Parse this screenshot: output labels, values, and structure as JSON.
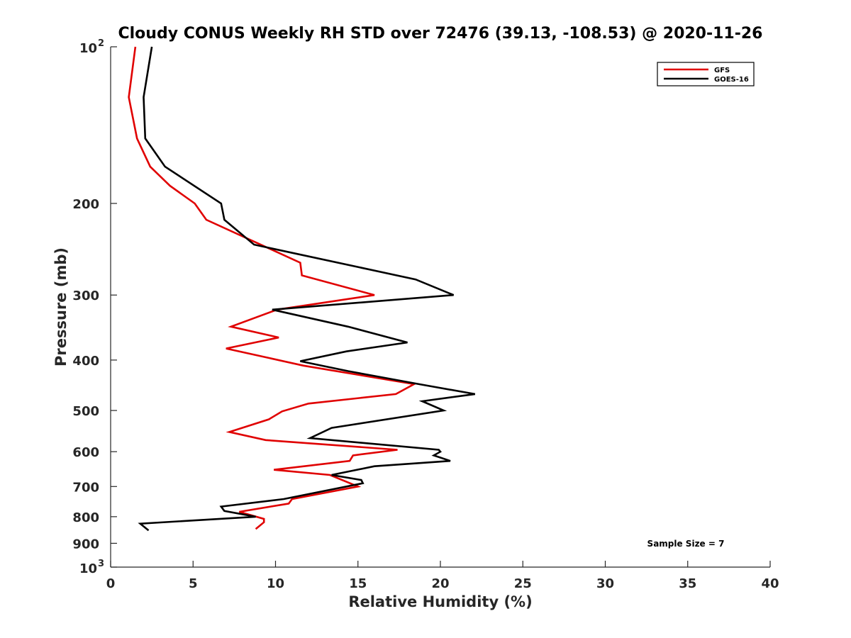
{
  "chart_data": {
    "type": "line",
    "title": "Cloudy CONUS Weekly RH STD over 72476 (39.13, -108.53) @ 2020-11-26",
    "xlabel": "Relative Humidity (%)",
    "ylabel": "Pressure (mb)",
    "xlim": [
      0,
      40
    ],
    "ylim": [
      100,
      1000
    ],
    "y_scale": "log",
    "y_reversed": true,
    "x_ticks": [
      "0",
      "5",
      "10",
      "15",
      "20",
      "25",
      "30",
      "35",
      "40"
    ],
    "y_ticks": [
      {
        "value": 100,
        "label": "10",
        "sup": "2"
      },
      {
        "value": 200,
        "label": "200",
        "sup": ""
      },
      {
        "value": 300,
        "label": "300",
        "sup": ""
      },
      {
        "value": 400,
        "label": "400",
        "sup": ""
      },
      {
        "value": 500,
        "label": "500",
        "sup": ""
      },
      {
        "value": 600,
        "label": "600",
        "sup": ""
      },
      {
        "value": 700,
        "label": "700",
        "sup": ""
      },
      {
        "value": 800,
        "label": "800",
        "sup": ""
      },
      {
        "value": 900,
        "label": "900",
        "sup": ""
      },
      {
        "value": 1000,
        "label": "10",
        "sup": "3"
      }
    ],
    "grid": false,
    "legend_position": "top-right",
    "series": [
      {
        "name": "GFS",
        "color": "#e00000",
        "points": [
          [
            1.5,
            100
          ],
          [
            1.1,
            125
          ],
          [
            1.6,
            150
          ],
          [
            2.4,
            170
          ],
          [
            3.6,
            185
          ],
          [
            5.1,
            200
          ],
          [
            5.8,
            215
          ],
          [
            9.1,
            240
          ],
          [
            11.5,
            260
          ],
          [
            11.6,
            275
          ],
          [
            16.0,
            300
          ],
          [
            10.1,
            320
          ],
          [
            7.3,
            345
          ],
          [
            10.2,
            362
          ],
          [
            7.0,
            380
          ],
          [
            11.7,
            410
          ],
          [
            18.4,
            445
          ],
          [
            17.3,
            465
          ],
          [
            12.0,
            485
          ],
          [
            10.4,
            502
          ],
          [
            9.6,
            520
          ],
          [
            7.2,
            550
          ],
          [
            9.4,
            570
          ],
          [
            17.4,
            595
          ],
          [
            14.7,
            610
          ],
          [
            14.5,
            625
          ],
          [
            9.9,
            650
          ],
          [
            13.3,
            665
          ],
          [
            15.0,
            700
          ],
          [
            11.0,
            740
          ],
          [
            10.8,
            755
          ],
          [
            7.8,
            783
          ],
          [
            9.3,
            808
          ],
          [
            9.3,
            820
          ],
          [
            8.8,
            845
          ]
        ]
      },
      {
        "name": "GOES-16",
        "color": "#000000",
        "points": [
          [
            2.5,
            100
          ],
          [
            2.0,
            125
          ],
          [
            2.1,
            150
          ],
          [
            3.3,
            170
          ],
          [
            6.7,
            200
          ],
          [
            6.9,
            215
          ],
          [
            8.7,
            240
          ],
          [
            18.5,
            280
          ],
          [
            20.8,
            300
          ],
          [
            9.8,
            320
          ],
          [
            14.4,
            345
          ],
          [
            18.0,
            370
          ],
          [
            14.3,
            385
          ],
          [
            11.5,
            402
          ],
          [
            14.4,
            420
          ],
          [
            18.7,
            445
          ],
          [
            22.1,
            465
          ],
          [
            18.9,
            480
          ],
          [
            20.2,
            500
          ],
          [
            13.4,
            540
          ],
          [
            12.1,
            565
          ],
          [
            19.9,
            595
          ],
          [
            20.0,
            600
          ],
          [
            19.6,
            610
          ],
          [
            20.6,
            625
          ],
          [
            16.0,
            640
          ],
          [
            13.4,
            665
          ],
          [
            15.2,
            680
          ],
          [
            15.3,
            690
          ],
          [
            10.5,
            740
          ],
          [
            6.7,
            765
          ],
          [
            6.9,
            780
          ],
          [
            8.8,
            800
          ],
          [
            1.8,
            825
          ],
          [
            2.3,
            850
          ]
        ]
      }
    ],
    "annotation": "Sample Size = 7"
  }
}
